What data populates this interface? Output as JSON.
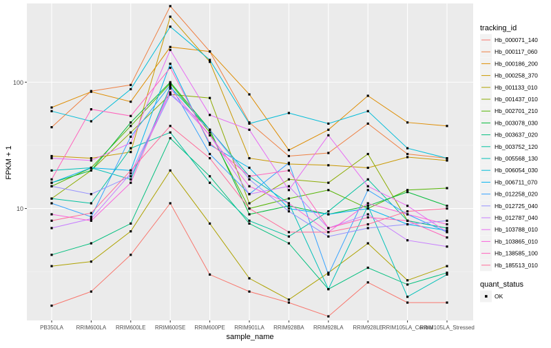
{
  "chart_data": {
    "type": "line",
    "xlabel": "sample_name",
    "ylabel": "FPKM + 1",
    "y_scale": "log10",
    "ylim": [
      1.3,
      420
    ],
    "y_ticks": [
      10,
      100
    ],
    "grid": true,
    "legend_position": "right",
    "categories": [
      "PB350LA",
      "RRIM600LA",
      "RRIM600LE",
      "RRIM600SE",
      "RRIM600PE",
      "RRIM901LA",
      "RRIM928BA",
      "RRIM928LA",
      "RRIM928LE",
      "RRIM105LA_Control",
      "RRIM105LA_Stressed"
    ],
    "legend": {
      "title": "tracking_id",
      "entries": [
        {
          "name": "Hb_000071_140",
          "color": "#F8766D"
        },
        {
          "name": "Hb_000117_060",
          "color": "#EE8043"
        },
        {
          "name": "Hb_000186_200",
          "color": "#DE8C00"
        },
        {
          "name": "Hb_000258_370",
          "color": "#C99800"
        },
        {
          "name": "Hb_001133_010",
          "color": "#AEA200"
        },
        {
          "name": "Hb_001437_010",
          "color": "#8BAB00"
        },
        {
          "name": "Hb_002701_210",
          "color": "#53B400"
        },
        {
          "name": "Hb_003078_030",
          "color": "#00BA38"
        },
        {
          "name": "Hb_003637_020",
          "color": "#00BF7D"
        },
        {
          "name": "Hb_003752_120",
          "color": "#00C19F"
        },
        {
          "name": "Hb_005568_130",
          "color": "#00C0B8"
        },
        {
          "name": "Hb_006054_030",
          "color": "#00BCD8"
        },
        {
          "name": "Hb_006711_070",
          "color": "#00B4EF"
        },
        {
          "name": "Hb_012258_020",
          "color": "#35A2FF"
        },
        {
          "name": "Hb_012725_040",
          "color": "#9590FF"
        },
        {
          "name": "Hb_012787_040",
          "color": "#C77CFF"
        },
        {
          "name": "Hb_103788_010",
          "color": "#E76BF3"
        },
        {
          "name": "Hb_103865_010",
          "color": "#FA62DB"
        },
        {
          "name": "Hb_138585_100",
          "color": "#FF62BC"
        },
        {
          "name": "Hb_185513_010",
          "color": "#FF6A98"
        }
      ]
    },
    "legend2": {
      "title": "quant_status",
      "entries": [
        {
          "name": "OK"
        }
      ]
    },
    "series": [
      {
        "name": "Hb_000071_140",
        "values": [
          1.7,
          2.2,
          4.3,
          11,
          3,
          2.2,
          1.8,
          1.4,
          2.6,
          1.8,
          1.8
        ]
      },
      {
        "name": "Hb_000117_060",
        "values": [
          44,
          85,
          95,
          400,
          175,
          48,
          26,
          27.5,
          47,
          27,
          25
        ]
      },
      {
        "name": "Hb_000186_200",
        "values": [
          63,
          84,
          70,
          190,
          175,
          80,
          29,
          42,
          78,
          48,
          45
        ]
      },
      {
        "name": "Hb_000258_370",
        "values": [
          26,
          25,
          28,
          330,
          145,
          25,
          22.5,
          22,
          21,
          25.5,
          24
        ]
      },
      {
        "name": "Hb_001133_010",
        "values": [
          3.5,
          3.8,
          6.6,
          20,
          7.6,
          2.8,
          1.9,
          3.1,
          5.3,
          2.7,
          3.5
        ]
      },
      {
        "name": "Hb_001437_010",
        "values": [
          12,
          20,
          40,
          80,
          75,
          11,
          17,
          16,
          27,
          8,
          7
        ]
      },
      {
        "name": "Hb_002701_210",
        "values": [
          15,
          21,
          45,
          98,
          40,
          10,
          12,
          14,
          10,
          14,
          14.5
        ]
      },
      {
        "name": "Hb_003078_030",
        "values": [
          16,
          20,
          48,
          100,
          42,
          9,
          10.5,
          9,
          10.5,
          13.5,
          10.5
        ]
      },
      {
        "name": "Hb_003637_020",
        "values": [
          4.3,
          5.3,
          7.6,
          36,
          18,
          7.6,
          5.3,
          2.3,
          3.4,
          2.5,
          3.1
        ]
      },
      {
        "name": "Hb_003752_120",
        "values": [
          12,
          11,
          30,
          40,
          16,
          8,
          6,
          9.5,
          17,
          8,
          7
        ]
      },
      {
        "name": "Hb_005568_130",
        "values": [
          20,
          21,
          17,
          92,
          42,
          18,
          11,
          2.3,
          10.5,
          2,
          3
        ]
      },
      {
        "name": "Hb_006054_030",
        "values": [
          59,
          49,
          88,
          275,
          150,
          47,
          57,
          47,
          59,
          30,
          25
        ]
      },
      {
        "name": "Hb_006711_070",
        "values": [
          16,
          21,
          20,
          140,
          32,
          21,
          10,
          9,
          10,
          7.5,
          6.7
        ]
      },
      {
        "name": "Hb_012258_020",
        "values": [
          11,
          8.6,
          37,
          95,
          27,
          13,
          23,
          3,
          14,
          9,
          6.5
        ]
      },
      {
        "name": "Hb_012725_040",
        "values": [
          15,
          13,
          18,
          80,
          42,
          17,
          9.5,
          6,
          7,
          7.5,
          8
        ]
      },
      {
        "name": "Hb_012787_040",
        "values": [
          7,
          8.3,
          19,
          83,
          38,
          13,
          15,
          7,
          9,
          5.6,
          5
        ]
      },
      {
        "name": "Hb_103788_010",
        "values": [
          25,
          24,
          33,
          180,
          55,
          42,
          14,
          38,
          15,
          10.5,
          6.5
        ]
      },
      {
        "name": "Hb_103865_010",
        "values": [
          9,
          8,
          16,
          89,
          38,
          15,
          11,
          6.5,
          11,
          9,
          7.5
        ]
      },
      {
        "name": "Hb_138585_100",
        "values": [
          17,
          61,
          54,
          130,
          33,
          18,
          20,
          7,
          8.5,
          8,
          5.9
        ]
      },
      {
        "name": "Hb_185513_010",
        "values": [
          8,
          9.2,
          20,
          45,
          25,
          10,
          6.5,
          6.5,
          7.5,
          9.5,
          10
        ]
      }
    ]
  }
}
